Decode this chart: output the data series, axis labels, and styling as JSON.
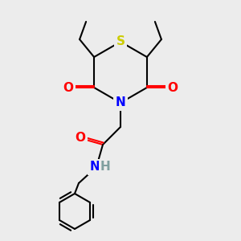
{
  "background_color": "#ececec",
  "atom_colors": {
    "S": "#cccc00",
    "N": "#0000ff",
    "O": "#ff0000",
    "C": "#000000",
    "H": "#7f9f9f"
  },
  "lw": 1.5,
  "fs": 11
}
